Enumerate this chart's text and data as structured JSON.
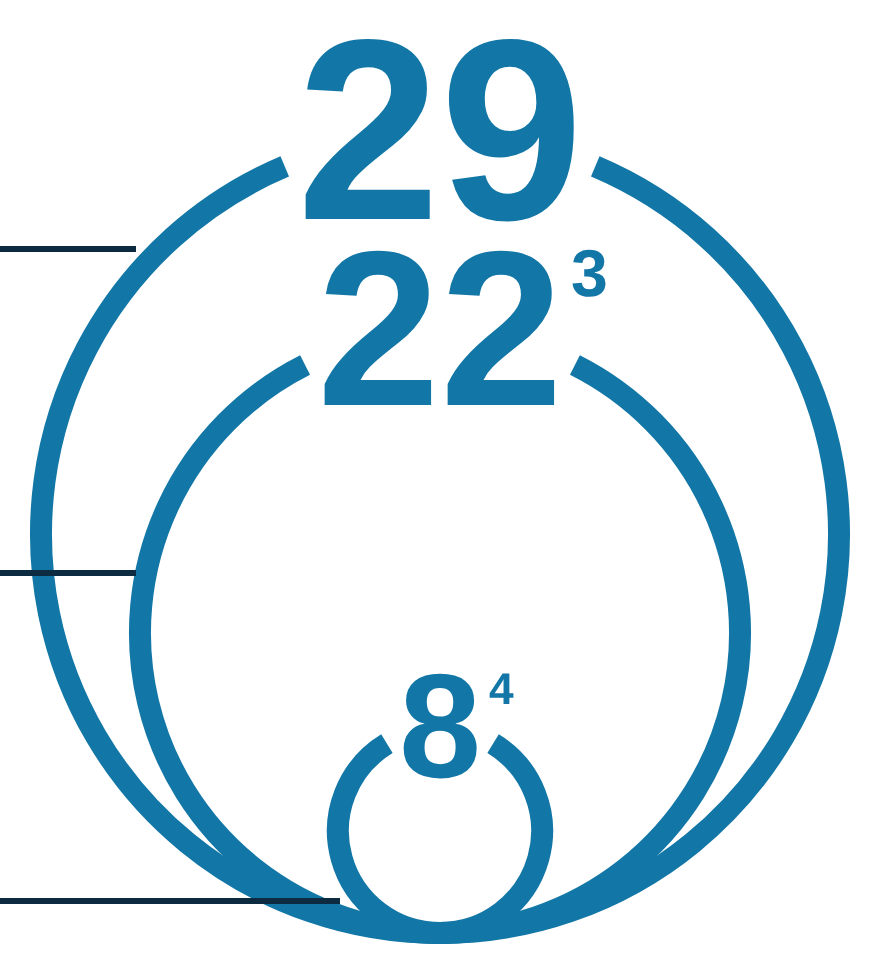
{
  "chart_data": {
    "type": "other",
    "values": [
      29,
      22,
      8
    ],
    "value_labels": [
      "29",
      "22$^{3}$",
      "8$^{4}$"
    ],
    "color": "#1277a6"
  }
}
